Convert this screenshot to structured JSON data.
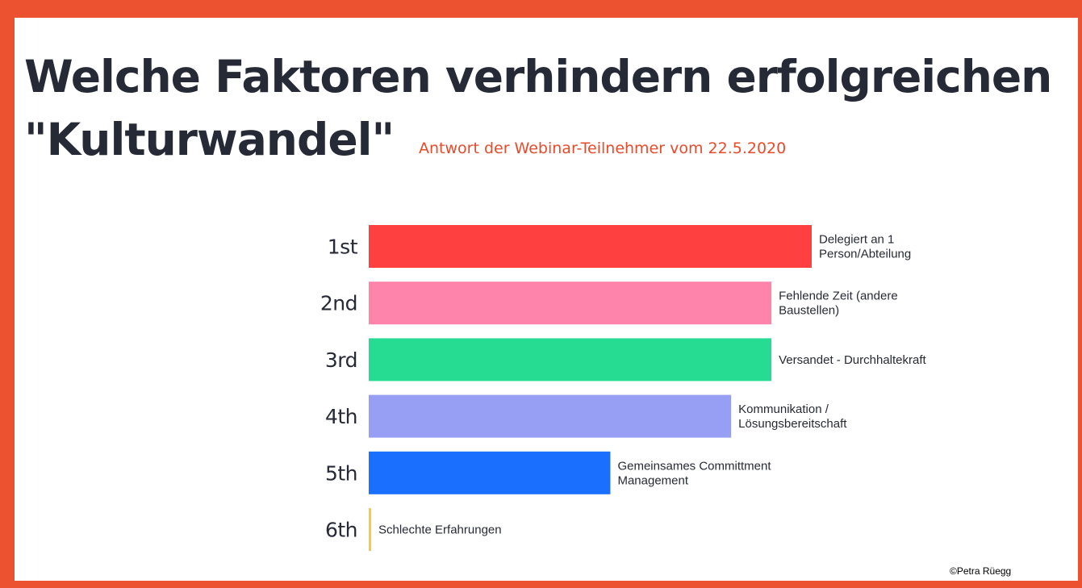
{
  "slide": {
    "title_lines": [
      "Welche Faktoren verhindern erfolgreichen",
      "\"Kulturwandel\""
    ],
    "subtitle": "Antwort der Webinar-Teilnehmer vom 22.5.2020",
    "credit": "©Petra Rüegg"
  },
  "colors": {
    "frame": "#ec5230",
    "title": "#262a36",
    "subtitle": "#e94a2a"
  },
  "chart_data": {
    "type": "bar",
    "orientation": "horizontal",
    "categories": [
      "1st",
      "2nd",
      "3rd",
      "4th",
      "5th",
      "6th"
    ],
    "labels": [
      [
        "Delegiert an 1",
        "Person/Abteilung"
      ],
      [
        "Fehlende Zeit (andere",
        "Baustellen)"
      ],
      [
        "Versandet - Durchhaltekraft"
      ],
      [
        "Kommunikation /",
        "Lösungsbereitschaft"
      ],
      [
        "Gemeinsames Committment",
        "Management"
      ],
      [
        "Schlechte Erfahrungen"
      ]
    ],
    "values": [
      11,
      10,
      10,
      9,
      6,
      0
    ],
    "colors": [
      "#ff4040",
      "#ff84ac",
      "#26dc92",
      "#979ff5",
      "#1b6ffe",
      "#f8c93a"
    ],
    "xlim": [
      0,
      11
    ],
    "grid": false,
    "legend": "none"
  }
}
